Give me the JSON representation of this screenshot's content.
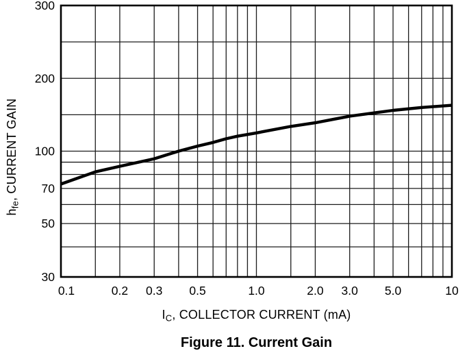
{
  "figure": {
    "caption": "Figure 11. Current Gain"
  },
  "chart_data": {
    "type": "line",
    "title": "Figure 11. Current Gain",
    "xlabel": "IC, COLLECTOR CURRENT (mA)",
    "ylabel": "hfe, CURRENT GAIN",
    "xlabel_parts": {
      "symbol": "I",
      "subscript": "C",
      "rest": ", COLLECTOR CURRENT (mA)"
    },
    "ylabel_parts": {
      "symbol": "h",
      "subscript": "fe",
      "rest": ", CURRENT GAIN"
    },
    "x_scale": "log",
    "y_scale": "log",
    "xlim": [
      0.1,
      10
    ],
    "ylim": [
      30,
      300
    ],
    "grid": true,
    "legend": false,
    "line_color": "#000000",
    "x_ticks": [
      {
        "value": 0.1,
        "label": "0.1"
      },
      {
        "value": 0.2,
        "label": "0.2"
      },
      {
        "value": 0.3,
        "label": "0.3"
      },
      {
        "value": 0.5,
        "label": "0.5"
      },
      {
        "value": 1.0,
        "label": "1.0"
      },
      {
        "value": 2.0,
        "label": "2.0"
      },
      {
        "value": 3.0,
        "label": "3.0"
      },
      {
        "value": 5.0,
        "label": "5.0"
      },
      {
        "value": 10,
        "label": "10"
      }
    ],
    "y_ticks": [
      {
        "value": 300,
        "label": "300"
      },
      {
        "value": 200,
        "label": "200"
      },
      {
        "value": 100,
        "label": "100"
      },
      {
        "value": 70,
        "label": "70"
      },
      {
        "value": 50,
        "label": "50"
      },
      {
        "value": 30,
        "label": "30"
      }
    ],
    "x_gridlines": [
      0.15,
      0.2,
      0.3,
      0.4,
      0.5,
      0.6,
      0.7,
      0.8,
      0.9,
      1.0,
      1.5,
      2,
      3,
      4,
      5,
      6,
      7,
      8,
      9
    ],
    "y_gridlines": [
      250,
      200,
      150,
      100,
      90,
      80,
      70,
      60,
      50,
      40
    ],
    "series": [
      {
        "name": "hfe",
        "x": [
          0.1,
          0.15,
          0.2,
          0.3,
          0.4,
          0.5,
          0.6,
          0.7,
          0.8,
          1.0,
          1.5,
          2.0,
          2.5,
          3.0,
          4.0,
          5.0,
          7.0,
          10
        ],
        "y": [
          73,
          82,
          86.5,
          93,
          100,
          107,
          112,
          117,
          120.5,
          125,
          134,
          139,
          144,
          148,
          152.5,
          156,
          160,
          163
        ]
      }
    ]
  }
}
